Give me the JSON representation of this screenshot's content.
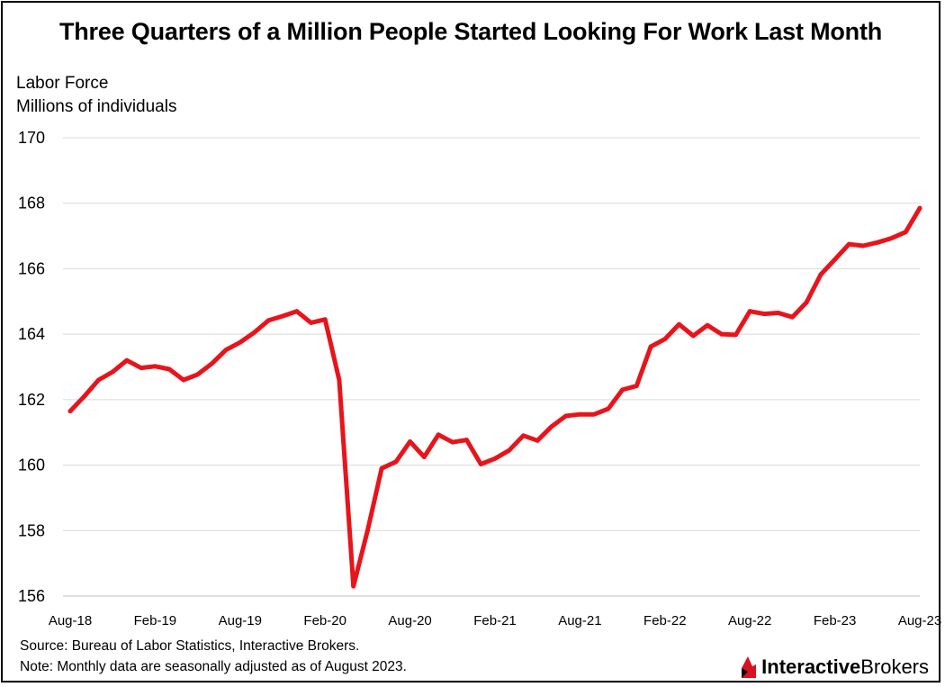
{
  "chart_data": {
    "type": "line",
    "title": "Three Quarters of a Million People Started Looking For Work Last Month",
    "ylabel_line1": "Labor Force",
    "ylabel_line2": "Millions of individuals",
    "ylim": [
      156,
      170
    ],
    "yticks": [
      "156",
      "158",
      "160",
      "162",
      "164",
      "166",
      "168",
      "170"
    ],
    "grid": true,
    "x_tick_labels": [
      "Aug-18",
      "Feb-19",
      "Aug-19",
      "Feb-20",
      "Aug-20",
      "Feb-21",
      "Aug-21",
      "Feb-22",
      "Aug-22",
      "Feb-23",
      "Aug-23"
    ],
    "line_color": "#e8141b",
    "series": [
      {
        "values": [
          161.65,
          162.1,
          162.6,
          162.85,
          163.2,
          162.97,
          163.02,
          162.93,
          162.6,
          162.77,
          163.1,
          163.52,
          163.75,
          164.05,
          164.42,
          164.55,
          164.7,
          164.35,
          164.45,
          162.6,
          156.3,
          158.0,
          159.9,
          160.1,
          160.72,
          160.25,
          160.93,
          160.7,
          160.77,
          160.03,
          160.2,
          160.45,
          160.9,
          160.75,
          161.18,
          161.5,
          161.55,
          161.55,
          161.72,
          162.3,
          162.42,
          163.62,
          163.85,
          164.3,
          163.95,
          164.27,
          164.0,
          163.98,
          164.7,
          164.62,
          164.65,
          164.52,
          164.97,
          165.82,
          166.28,
          166.75,
          166.7,
          166.8,
          166.93,
          167.12,
          167.85
        ]
      }
    ]
  },
  "footer": {
    "source": "Source: Bureau of Labor Statistics, Interactive Brokers.",
    "note": "Note: Monthly data are seasonally adjusted as of August 2023."
  },
  "brand": {
    "part1": "Interactive",
    "part2": "Brokers",
    "logo_color": "#d81222"
  }
}
